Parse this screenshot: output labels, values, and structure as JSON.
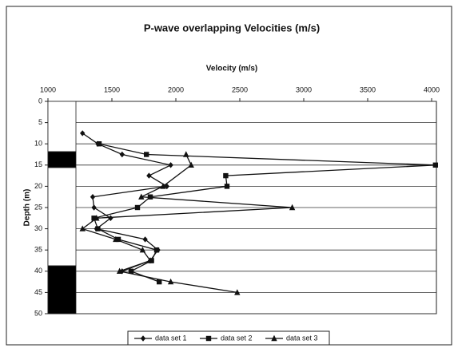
{
  "chart_data": {
    "type": "line",
    "title": "P-wave overlapping Velocities (m/s)",
    "x_label": "Velocity (m/s)",
    "y_label": "Depth (m)",
    "xlim": [
      1000,
      4000
    ],
    "xticks": [
      1000,
      1500,
      2000,
      2500,
      3000,
      3500,
      4000
    ],
    "ylim": [
      0,
      50
    ],
    "yticks": [
      0,
      5,
      10,
      15,
      20,
      25,
      30,
      35,
      40,
      45,
      50
    ],
    "y_reversed": true,
    "x_axis_position": "top",
    "grid": true,
    "legend": "bottom",
    "series": [
      {
        "name": "data set 1",
        "color": "#111111",
        "marker": "diamond",
        "x": [
          1270,
          1390,
          1580,
          1960,
          1790,
          1930,
          1350,
          1360,
          1490,
          1380,
          1760,
          1860,
          1800,
          1580
        ],
        "y": [
          7.5,
          10,
          12.5,
          15,
          17.5,
          20,
          22.5,
          25,
          27.5,
          30,
          32.5,
          35,
          37.5,
          40
        ]
      },
      {
        "name": "data set 2",
        "color": "#111111",
        "marker": "square",
        "x": [
          1400,
          1770,
          4030,
          2390,
          2400,
          1800,
          1700,
          1360,
          1390,
          1550,
          1850,
          1810,
          1650,
          1870
        ],
        "y": [
          10,
          12.5,
          15,
          17.5,
          20,
          22.5,
          25,
          27.5,
          30,
          32.5,
          35,
          37.5,
          40,
          42.5
        ]
      },
      {
        "name": "data set 3",
        "color": "#111111",
        "marker": "triangle",
        "x": [
          2080,
          2120,
          1900,
          1730,
          2910,
          1380,
          1270,
          1530,
          1740,
          1800,
          1560,
          1960,
          2480
        ],
        "y": [
          12.5,
          15,
          20,
          22.5,
          25,
          27.5,
          30,
          32.5,
          35,
          37.5,
          40,
          42.5,
          45
        ]
      }
    ]
  }
}
